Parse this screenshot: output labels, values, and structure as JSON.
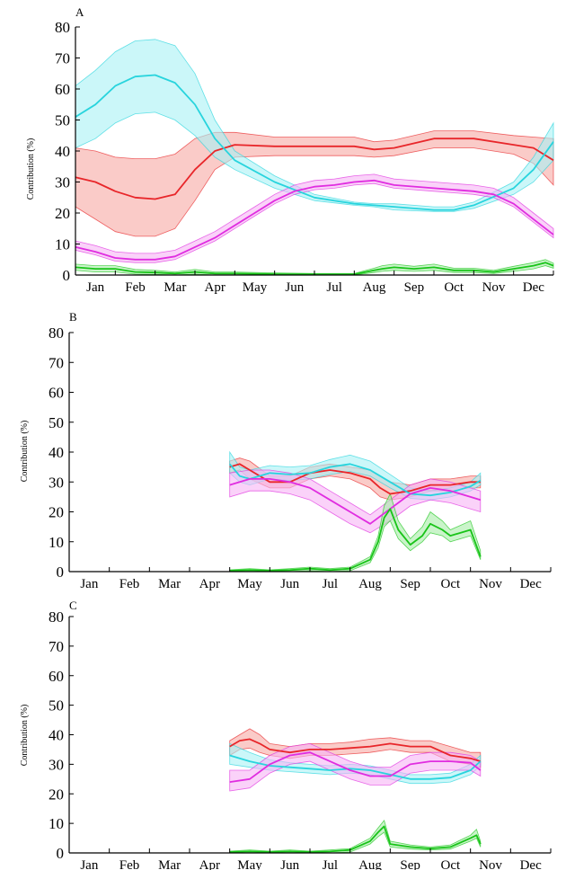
{
  "colors": {
    "red": "#e8262a",
    "red_band": "#f6a9a4",
    "cyan": "#28d4dd",
    "cyan_band": "#a9f1f5",
    "magenta": "#e02de0",
    "magenta_band": "#f6b4f5",
    "green": "#19c419",
    "green_band": "#a6eda6"
  },
  "chart_data": [
    {
      "type": "line",
      "panel_label": "A",
      "ylabel": "Contribution (%)",
      "ylim": [
        0,
        80
      ],
      "yticks": [
        0,
        10,
        20,
        30,
        40,
        50,
        60,
        70,
        80
      ],
      "xlim": [
        0,
        12
      ],
      "categories": [
        "Jan",
        "Feb",
        "Mar",
        "Apr",
        "May",
        "Jun",
        "Jul",
        "Aug",
        "Sep",
        "Oct",
        "Nov",
        "Dec"
      ],
      "tick_labels": [
        "Jan",
        "Feb",
        "Mar",
        "Apr",
        "May",
        "Jun",
        "Jul",
        "Aug",
        "Sep",
        "Oct",
        "Nov",
        "Dec"
      ],
      "series": [
        {
          "color": "red",
          "x": [
            0,
            0.5,
            1,
            1.5,
            2,
            2.5,
            3,
            3.5,
            4,
            5,
            6,
            7,
            7.5,
            8,
            9,
            10,
            11,
            11.5,
            12
          ],
          "values": [
            31.5,
            30,
            27,
            25,
            24.5,
            26,
            34,
            40,
            42,
            41.5,
            41.5,
            41.5,
            40.5,
            41,
            44,
            44,
            42,
            41,
            37
          ],
          "lower": [
            22,
            18,
            14,
            12.5,
            12.5,
            15,
            24,
            34,
            38,
            38.5,
            38.5,
            38.5,
            38,
            38.5,
            41,
            41,
            39,
            36,
            29
          ],
          "upper": [
            41,
            40,
            38,
            37.5,
            37.5,
            39,
            44,
            46,
            46,
            44.5,
            44.5,
            44.5,
            43,
            43.5,
            46.5,
            46.5,
            45,
            44.5,
            44
          ]
        },
        {
          "color": "cyan",
          "x": [
            0,
            0.5,
            1,
            1.5,
            2,
            2.5,
            3,
            3.5,
            4,
            5,
            6,
            7,
            7.5,
            8,
            9,
            9.5,
            10,
            11,
            11.5,
            12
          ],
          "values": [
            51,
            55,
            61,
            64,
            64.5,
            62,
            55,
            44,
            37,
            30,
            25,
            23,
            22.5,
            22,
            21,
            21,
            22.5,
            28,
            34,
            43
          ],
          "lower": [
            41,
            44,
            49,
            52,
            52.5,
            50,
            45,
            38,
            34,
            28,
            24,
            22.5,
            22,
            21,
            20.5,
            20.5,
            21.5,
            26,
            30,
            37
          ],
          "upper": [
            61,
            66,
            72,
            75.5,
            76,
            74,
            65,
            50,
            40,
            32,
            26,
            23.5,
            23,
            23,
            22,
            22,
            23.5,
            30,
            38,
            49
          ]
        },
        {
          "color": "magenta",
          "x": [
            0,
            0.5,
            1,
            1.5,
            2,
            2.5,
            3,
            3.5,
            4,
            4.5,
            5,
            5.5,
            6,
            6.5,
            7,
            7.5,
            8,
            9,
            10,
            10.5,
            11,
            11.5,
            12
          ],
          "values": [
            9,
            7.5,
            5.5,
            5,
            5,
            6,
            9,
            12,
            16,
            20,
            24,
            27,
            28.5,
            29,
            30,
            30.5,
            29,
            28,
            27,
            26,
            23,
            18,
            13
          ],
          "lower": [
            8,
            6.5,
            4.5,
            4,
            4,
            5,
            8,
            11,
            15,
            19,
            23,
            26,
            27.5,
            28,
            29,
            29.5,
            28,
            27,
            26,
            25,
            22,
            17,
            12
          ],
          "upper": [
            11,
            9.5,
            7.5,
            7,
            7,
            8,
            11,
            14,
            18,
            22,
            26,
            29,
            30.5,
            31,
            32,
            32.5,
            31,
            30,
            29,
            28,
            25,
            20,
            15
          ]
        },
        {
          "color": "green",
          "x": [
            0,
            0.5,
            1,
            1.5,
            2,
            2.5,
            3,
            3.5,
            4,
            5,
            6,
            7,
            7.5,
            7.7,
            8,
            8.5,
            9,
            9.5,
            10,
            10.5,
            11,
            11.5,
            11.8,
            12
          ],
          "values": [
            2.5,
            2,
            2,
            1,
            0.8,
            0.5,
            1,
            0.5,
            0.5,
            0.3,
            0.2,
            0.2,
            1.5,
            2,
            2.5,
            2,
            2.5,
            1.5,
            1.5,
            1,
            2,
            3,
            4,
            3
          ],
          "lower": [
            1.5,
            1,
            1,
            0.3,
            0.2,
            0,
            0.3,
            0,
            0,
            0,
            0,
            0,
            0.8,
            1.2,
            1.5,
            1.2,
            1.5,
            0.8,
            0.8,
            0.5,
            1.2,
            2,
            3,
            2.2
          ],
          "upper": [
            3.5,
            3,
            3,
            1.8,
            1.5,
            1,
            1.8,
            1,
            1,
            0.7,
            0.5,
            0.5,
            2.2,
            3,
            3.5,
            2.8,
            3.5,
            2.2,
            2.2,
            1.5,
            2.8,
            4,
            5,
            3.8
          ]
        }
      ]
    },
    {
      "type": "line",
      "panel_label": "B",
      "ylabel": "Contribution (%)",
      "ylim": [
        0,
        80
      ],
      "yticks": [
        0,
        10,
        20,
        30,
        40,
        50,
        60,
        70,
        80
      ],
      "xlim": [
        0,
        12
      ],
      "categories": [
        "Jan",
        "Feb",
        "Mar",
        "Apr",
        "May",
        "Jun",
        "Jul",
        "Aug",
        "Sep",
        "Oct",
        "Nov",
        "Dec"
      ],
      "tick_labels": [
        "Jan",
        "Feb",
        "Mar",
        "Apr",
        "May",
        "Jun",
        "Jul",
        "Aug",
        "Sep",
        "Oct",
        "Nov",
        "Dec"
      ],
      "series": [
        {
          "color": "red",
          "x": [
            4,
            4.25,
            4.5,
            5,
            5.5,
            6,
            6.5,
            7,
            7.5,
            7.75,
            8,
            8.5,
            9,
            9.5,
            10,
            10.25
          ],
          "values": [
            35,
            36,
            34,
            30,
            30,
            33,
            34,
            33,
            31,
            28,
            26,
            27,
            29,
            29,
            30,
            30
          ],
          "lower": [
            33,
            34,
            31,
            28,
            28,
            31,
            32,
            31,
            28,
            25,
            24,
            25,
            27,
            27,
            28,
            28
          ],
          "upper": [
            37,
            38,
            37,
            32,
            32,
            35,
            36,
            35,
            34,
            32,
            30,
            29,
            31,
            31,
            32,
            32
          ]
        },
        {
          "color": "cyan",
          "x": [
            4,
            4.25,
            4.5,
            5,
            5.5,
            6,
            6.5,
            7,
            7.5,
            8,
            8.5,
            9,
            9.5,
            10,
            10.25
          ],
          "values": [
            36,
            32,
            31,
            33,
            32.5,
            33,
            35,
            36,
            34,
            30,
            26,
            25.5,
            26.5,
            28.5,
            30.5
          ],
          "lower": [
            33,
            30,
            29,
            31,
            30.5,
            31,
            32.5,
            33.5,
            32,
            28,
            24.5,
            24,
            25,
            27,
            29
          ],
          "upper": [
            40,
            35,
            34,
            35.5,
            35,
            35.5,
            37.5,
            39,
            37,
            32.5,
            28,
            27,
            28,
            30,
            33
          ]
        },
        {
          "color": "magenta",
          "x": [
            4,
            4.5,
            5,
            5.5,
            6,
            6.5,
            7,
            7.5,
            8,
            8.5,
            9,
            9.5,
            10,
            10.25
          ],
          "values": [
            29,
            31,
            31,
            30,
            28,
            24,
            20,
            16,
            21,
            26,
            28,
            27,
            25,
            24
          ],
          "lower": [
            25,
            27,
            27,
            26,
            24,
            20,
            16,
            13,
            17,
            22,
            24,
            23,
            21,
            20
          ],
          "upper": [
            33,
            34,
            34,
            33,
            31,
            27,
            23,
            19,
            24,
            29,
            31,
            30,
            28,
            27
          ]
        },
        {
          "color": "green",
          "x": [
            4,
            4.5,
            5,
            5.5,
            6,
            6.5,
            7,
            7.5,
            7.7,
            7.85,
            8,
            8.2,
            8.5,
            8.8,
            9,
            9.3,
            9.5,
            10,
            10.25
          ],
          "values": [
            0.3,
            0.5,
            0.3,
            0.5,
            1,
            0.5,
            1,
            4,
            10,
            18,
            21,
            14,
            9,
            12,
            16,
            14,
            12,
            14,
            5
          ],
          "lower": [
            0,
            0,
            0,
            0,
            0.3,
            0,
            0.3,
            3,
            8,
            15,
            17,
            11,
            7,
            10,
            13,
            12,
            10,
            12,
            4
          ],
          "upper": [
            0.6,
            1,
            0.6,
            1,
            1.5,
            1,
            1.5,
            5,
            12,
            22,
            26,
            17,
            11,
            15,
            20,
            17,
            14,
            17,
            7
          ]
        }
      ]
    },
    {
      "type": "line",
      "panel_label": "C",
      "ylabel": "Contribution (%)",
      "ylim": [
        0,
        80
      ],
      "yticks": [
        0,
        10,
        20,
        30,
        40,
        50,
        60,
        70,
        80
      ],
      "xlim": [
        0,
        12
      ],
      "categories": [
        "Jan",
        "Feb",
        "Mar",
        "Apr",
        "May",
        "Jun",
        "Jul",
        "Aug",
        "Sep",
        "Oct",
        "Nov",
        "Dec"
      ],
      "tick_labels": [
        "Jan",
        "Feb",
        "Mar",
        "Apr",
        "May",
        "Jun",
        "Jul",
        "Aug",
        "Sep",
        "Oct",
        "Nov",
        "Dec"
      ],
      "series": [
        {
          "color": "red",
          "x": [
            4,
            4.25,
            4.5,
            4.75,
            5,
            5.5,
            6,
            6.5,
            7,
            7.5,
            8,
            8.5,
            9,
            9.5,
            10,
            10.25
          ],
          "values": [
            36,
            38,
            38.5,
            37,
            35,
            34,
            35,
            35,
            35.5,
            36,
            37,
            36,
            36,
            33,
            32,
            31
          ],
          "lower": [
            33,
            35,
            35.5,
            34,
            33,
            32,
            33,
            33,
            33.5,
            34,
            35,
            34,
            34,
            31,
            30,
            29
          ],
          "upper": [
            38,
            40,
            42,
            40,
            37,
            36,
            37,
            37,
            37.5,
            38.5,
            39,
            38,
            38,
            36,
            34,
            34
          ]
        },
        {
          "color": "cyan",
          "x": [
            4,
            4.5,
            5,
            5.5,
            6,
            6.5,
            7,
            7.5,
            8,
            8.5,
            9,
            9.5,
            10,
            10.25
          ],
          "values": [
            33,
            31,
            29.5,
            29,
            28.5,
            28,
            28.5,
            28,
            26.5,
            25,
            25,
            25.5,
            28,
            31
          ],
          "lower": [
            30,
            29,
            28,
            27.5,
            27,
            26.5,
            27,
            26.5,
            25,
            23.5,
            23.5,
            24,
            26.5,
            29.5
          ],
          "upper": [
            37,
            34,
            31.5,
            30.5,
            30,
            29.5,
            30,
            29.5,
            28,
            26.5,
            26.5,
            27,
            30,
            33
          ]
        },
        {
          "color": "magenta",
          "x": [
            4,
            4.5,
            5,
            5.5,
            6,
            6.5,
            7,
            7.5,
            8,
            8.5,
            9,
            9.5,
            10,
            10.25
          ],
          "values": [
            24,
            25,
            30,
            33,
            34,
            31,
            28,
            26,
            26,
            30,
            31,
            31,
            30.5,
            28
          ],
          "lower": [
            21,
            22,
            27,
            30,
            31,
            28,
            25,
            23,
            23,
            27,
            28,
            28,
            28,
            26
          ],
          "upper": [
            28,
            28,
            33,
            36,
            37,
            34,
            31,
            29,
            29,
            33,
            34,
            34,
            33,
            31
          ]
        },
        {
          "color": "green",
          "x": [
            4,
            4.5,
            5,
            5.5,
            6,
            6.5,
            7,
            7.5,
            7.7,
            7.85,
            8,
            8.5,
            9,
            9.5,
            10,
            10.15,
            10.25
          ],
          "values": [
            0.3,
            0.5,
            0.3,
            0.5,
            0.3,
            0.5,
            1,
            4,
            7,
            9,
            3,
            2,
            1.5,
            2,
            5,
            6,
            3
          ],
          "lower": [
            0,
            0,
            0,
            0,
            0,
            0,
            0.3,
            3,
            5.5,
            7,
            2,
            1.3,
            1,
            1.3,
            4,
            5,
            2
          ],
          "upper": [
            0.6,
            1,
            0.6,
            1,
            0.6,
            1,
            1.5,
            5,
            8.5,
            11,
            4,
            2.7,
            2,
            2.7,
            6,
            8,
            4
          ]
        }
      ]
    }
  ]
}
